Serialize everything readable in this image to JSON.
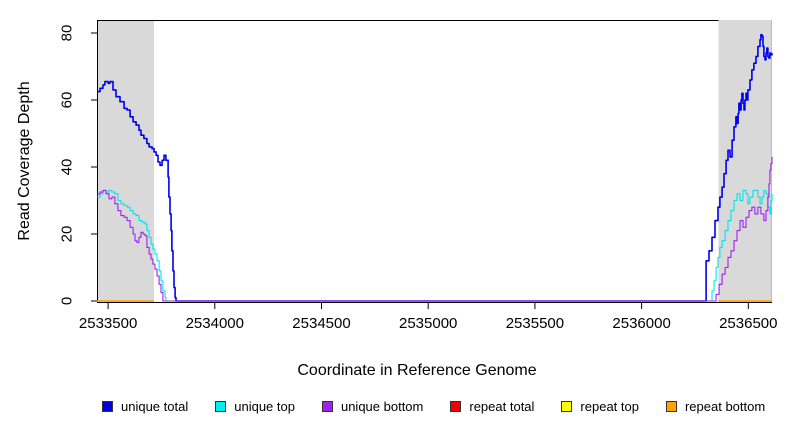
{
  "chart_data": {
    "type": "line",
    "title": "",
    "xlabel": "Coordinate in Reference Genome",
    "ylabel": "Read Coverage Depth",
    "x_domain": [
      2533448,
      2536611
    ],
    "y_domain": [
      0,
      83.8
    ],
    "x_ticks": [
      2533500,
      2534000,
      2534500,
      2535000,
      2535500,
      2536000,
      2536500
    ],
    "y_ticks": [
      0,
      20,
      40,
      60,
      80
    ],
    "grid": false,
    "legend_position": "bottom",
    "shaded_regions": [
      {
        "name": "left-repeat-region",
        "x0": 2533448,
        "x1": 2533715,
        "color": "#d9d9d9"
      },
      {
        "name": "right-repeat-region",
        "x0": 2536360,
        "x1": 2536611,
        "color": "#d9d9d9"
      }
    ],
    "legend": [
      {
        "label": "unique total",
        "color": "#0000e0"
      },
      {
        "label": "unique top",
        "color": "#00eeee"
      },
      {
        "label": "unique bottom",
        "color": "#a020f0"
      },
      {
        "label": "repeat total",
        "color": "#ee0000"
      },
      {
        "label": "repeat top",
        "color": "#ffff00"
      },
      {
        "label": "repeat bottom",
        "color": "#ffa500"
      }
    ],
    "series": [
      {
        "name": "unique total",
        "color": "#0000ee",
        "width": 1.6,
        "segments": [
          [
            [
              2533448,
              62.5
            ],
            [
              2533462,
              63.5
            ],
            [
              2533476,
              64.5
            ],
            [
              2533485,
              65.5
            ],
            [
              2533500,
              65
            ],
            [
              2533509,
              65.5
            ],
            [
              2533523,
              63
            ],
            [
              2533537,
              61
            ],
            [
              2533556,
              59.5
            ],
            [
              2533575,
              57.5
            ],
            [
              2533589,
              57
            ],
            [
              2533603,
              55
            ],
            [
              2533617,
              53.5
            ],
            [
              2533631,
              52.5
            ],
            [
              2533645,
              51
            ],
            [
              2533654,
              49.5
            ],
            [
              2533668,
              48.5
            ],
            [
              2533682,
              47
            ],
            [
              2533692,
              46
            ],
            [
              2533706,
              45.5
            ],
            [
              2533715,
              44.5
            ],
            [
              2533725,
              43.5
            ],
            [
              2533734,
              41.5
            ],
            [
              2533743,
              40.5
            ],
            [
              2533753,
              42
            ],
            [
              2533762,
              43.5
            ],
            [
              2533771,
              42
            ],
            [
              2533781,
              37
            ],
            [
              2533785,
              31
            ],
            [
              2533790,
              26
            ],
            [
              2533795,
              21
            ],
            [
              2533799,
              15
            ],
            [
              2533804,
              9
            ],
            [
              2533809,
              4
            ],
            [
              2533814,
              1
            ],
            [
              2533818,
              0
            ],
            [
              2536297,
              0
            ],
            [
              2536302,
              12
            ],
            [
              2536316,
              15
            ],
            [
              2536330,
              19
            ],
            [
              2536344,
              24
            ],
            [
              2536358,
              28
            ],
            [
              2536367,
              31
            ],
            [
              2536377,
              34
            ],
            [
              2536386,
              38
            ],
            [
              2536396,
              42
            ],
            [
              2536405,
              45
            ],
            [
              2536414,
              43
            ],
            [
              2536424,
              48
            ],
            [
              2536433,
              52
            ],
            [
              2536442,
              55
            ],
            [
              2536447,
              53
            ],
            [
              2536452,
              56
            ],
            [
              2536456,
              59
            ],
            [
              2536461,
              57
            ],
            [
              2536466,
              60
            ],
            [
              2536470,
              62
            ],
            [
              2536475,
              59
            ],
            [
              2536480,
              57
            ],
            [
              2536484,
              60
            ],
            [
              2536489,
              62
            ],
            [
              2536494,
              60
            ],
            [
              2536498,
              63
            ],
            [
              2536508,
              66
            ],
            [
              2536517,
              69
            ],
            [
              2536526,
              71
            ],
            [
              2536536,
              73
            ],
            [
              2536545,
              76
            ],
            [
              2536555,
              78
            ],
            [
              2536559,
              79.5
            ],
            [
              2536564,
              79
            ],
            [
              2536569,
              76
            ],
            [
              2536573,
              73
            ],
            [
              2536578,
              72
            ],
            [
              2536583,
              74
            ],
            [
              2536587,
              75.5
            ],
            [
              2536592,
              73
            ],
            [
              2536597,
              72.5
            ],
            [
              2536601,
              74
            ],
            [
              2536606,
              73.5
            ],
            [
              2536611,
              74
            ]
          ]
        ]
      },
      {
        "name": "unique top",
        "color": "#00e5ee",
        "width": 1.1,
        "segments": [
          [
            [
              2533448,
              31
            ],
            [
              2533462,
              32
            ],
            [
              2533476,
              33
            ],
            [
              2533490,
              32.5
            ],
            [
              2533504,
              33
            ],
            [
              2533518,
              32.5
            ],
            [
              2533532,
              32
            ],
            [
              2533546,
              30
            ],
            [
              2533560,
              29
            ],
            [
              2533575,
              28.5
            ],
            [
              2533589,
              28
            ],
            [
              2533603,
              27
            ],
            [
              2533617,
              26
            ],
            [
              2533631,
              25.5
            ],
            [
              2533645,
              24
            ],
            [
              2533659,
              23.5
            ],
            [
              2533673,
              23
            ],
            [
              2533682,
              21
            ],
            [
              2533692,
              19
            ],
            [
              2533701,
              17
            ],
            [
              2533710,
              15.5
            ],
            [
              2533720,
              14
            ],
            [
              2533729,
              12
            ],
            [
              2533739,
              9
            ],
            [
              2533748,
              6
            ],
            [
              2533757,
              3
            ],
            [
              2533767,
              1
            ],
            [
              2533771,
              0
            ],
            [
              2536321,
              0
            ],
            [
              2536330,
              3
            ],
            [
              2536339,
              6
            ],
            [
              2536349,
              10
            ],
            [
              2536358,
              13
            ],
            [
              2536367,
              16
            ],
            [
              2536377,
              18
            ],
            [
              2536391,
              21
            ],
            [
              2536405,
              24
            ],
            [
              2536419,
              27
            ],
            [
              2536433,
              30
            ],
            [
              2536447,
              32
            ],
            [
              2536461,
              30
            ],
            [
              2536475,
              33
            ],
            [
              2536489,
              32
            ],
            [
              2536498,
              29
            ],
            [
              2536508,
              31
            ],
            [
              2536522,
              33
            ],
            [
              2536536,
              33
            ],
            [
              2536545,
              31
            ],
            [
              2536555,
              29
            ],
            [
              2536564,
              31
            ],
            [
              2536573,
              33
            ],
            [
              2536583,
              32
            ],
            [
              2536592,
              28
            ],
            [
              2536601,
              26
            ],
            [
              2536606,
              30
            ],
            [
              2536611,
              32
            ]
          ]
        ]
      },
      {
        "name": "unique bottom",
        "color": "#a020f0",
        "width": 1.1,
        "segments": [
          [
            [
              2533448,
              32
            ],
            [
              2533462,
              32.5
            ],
            [
              2533476,
              33
            ],
            [
              2533490,
              32
            ],
            [
              2533504,
              30.5
            ],
            [
              2533518,
              31
            ],
            [
              2533532,
              29
            ],
            [
              2533546,
              27
            ],
            [
              2533560,
              25.5
            ],
            [
              2533575,
              25
            ],
            [
              2533589,
              24
            ],
            [
              2533603,
              22
            ],
            [
              2533617,
              20
            ],
            [
              2533626,
              18
            ],
            [
              2533635,
              17.5
            ],
            [
              2533645,
              19
            ],
            [
              2533654,
              20.5
            ],
            [
              2533664,
              20
            ],
            [
              2533673,
              19.5
            ],
            [
              2533682,
              16
            ],
            [
              2533692,
              14
            ],
            [
              2533701,
              12.5
            ],
            [
              2533710,
              11
            ],
            [
              2533720,
              9.5
            ],
            [
              2533729,
              7.5
            ],
            [
              2533739,
              5
            ],
            [
              2533748,
              2.5
            ],
            [
              2533757,
              0
            ],
            [
              2536335,
              0
            ],
            [
              2536349,
              2
            ],
            [
              2536363,
              5
            ],
            [
              2536377,
              8
            ],
            [
              2536391,
              10
            ],
            [
              2536405,
              13
            ],
            [
              2536419,
              15
            ],
            [
              2536433,
              18
            ],
            [
              2536447,
              21
            ],
            [
              2536461,
              24
            ],
            [
              2536475,
              22
            ],
            [
              2536489,
              25
            ],
            [
              2536503,
              27
            ],
            [
              2536517,
              28
            ],
            [
              2536531,
              26
            ],
            [
              2536545,
              28
            ],
            [
              2536559,
              26
            ],
            [
              2536573,
              24
            ],
            [
              2536583,
              27
            ],
            [
              2536592,
              31
            ],
            [
              2536597,
              35
            ],
            [
              2536601,
              39
            ],
            [
              2536606,
              41
            ],
            [
              2536611,
              43
            ]
          ]
        ]
      },
      {
        "name": "repeat total",
        "color": "#ee0000",
        "width": 1.2,
        "segments": [
          [
            [
              2533448,
              0
            ],
            [
              2533715,
              0
            ]
          ],
          [
            [
              2536360,
              0
            ],
            [
              2536611,
              0
            ]
          ]
        ]
      },
      {
        "name": "repeat top",
        "color": "#ffff00",
        "width": 1.2,
        "segments": [
          [
            [
              2533448,
              0
            ],
            [
              2533715,
              0
            ]
          ],
          [
            [
              2536360,
              0
            ],
            [
              2536611,
              0
            ]
          ]
        ]
      },
      {
        "name": "repeat bottom",
        "color": "#ffa500",
        "width": 1.2,
        "segments": [
          [
            [
              2533448,
              0
            ],
            [
              2533715,
              0
            ]
          ],
          [
            [
              2536360,
              0
            ],
            [
              2536611,
              0
            ]
          ]
        ]
      }
    ]
  }
}
